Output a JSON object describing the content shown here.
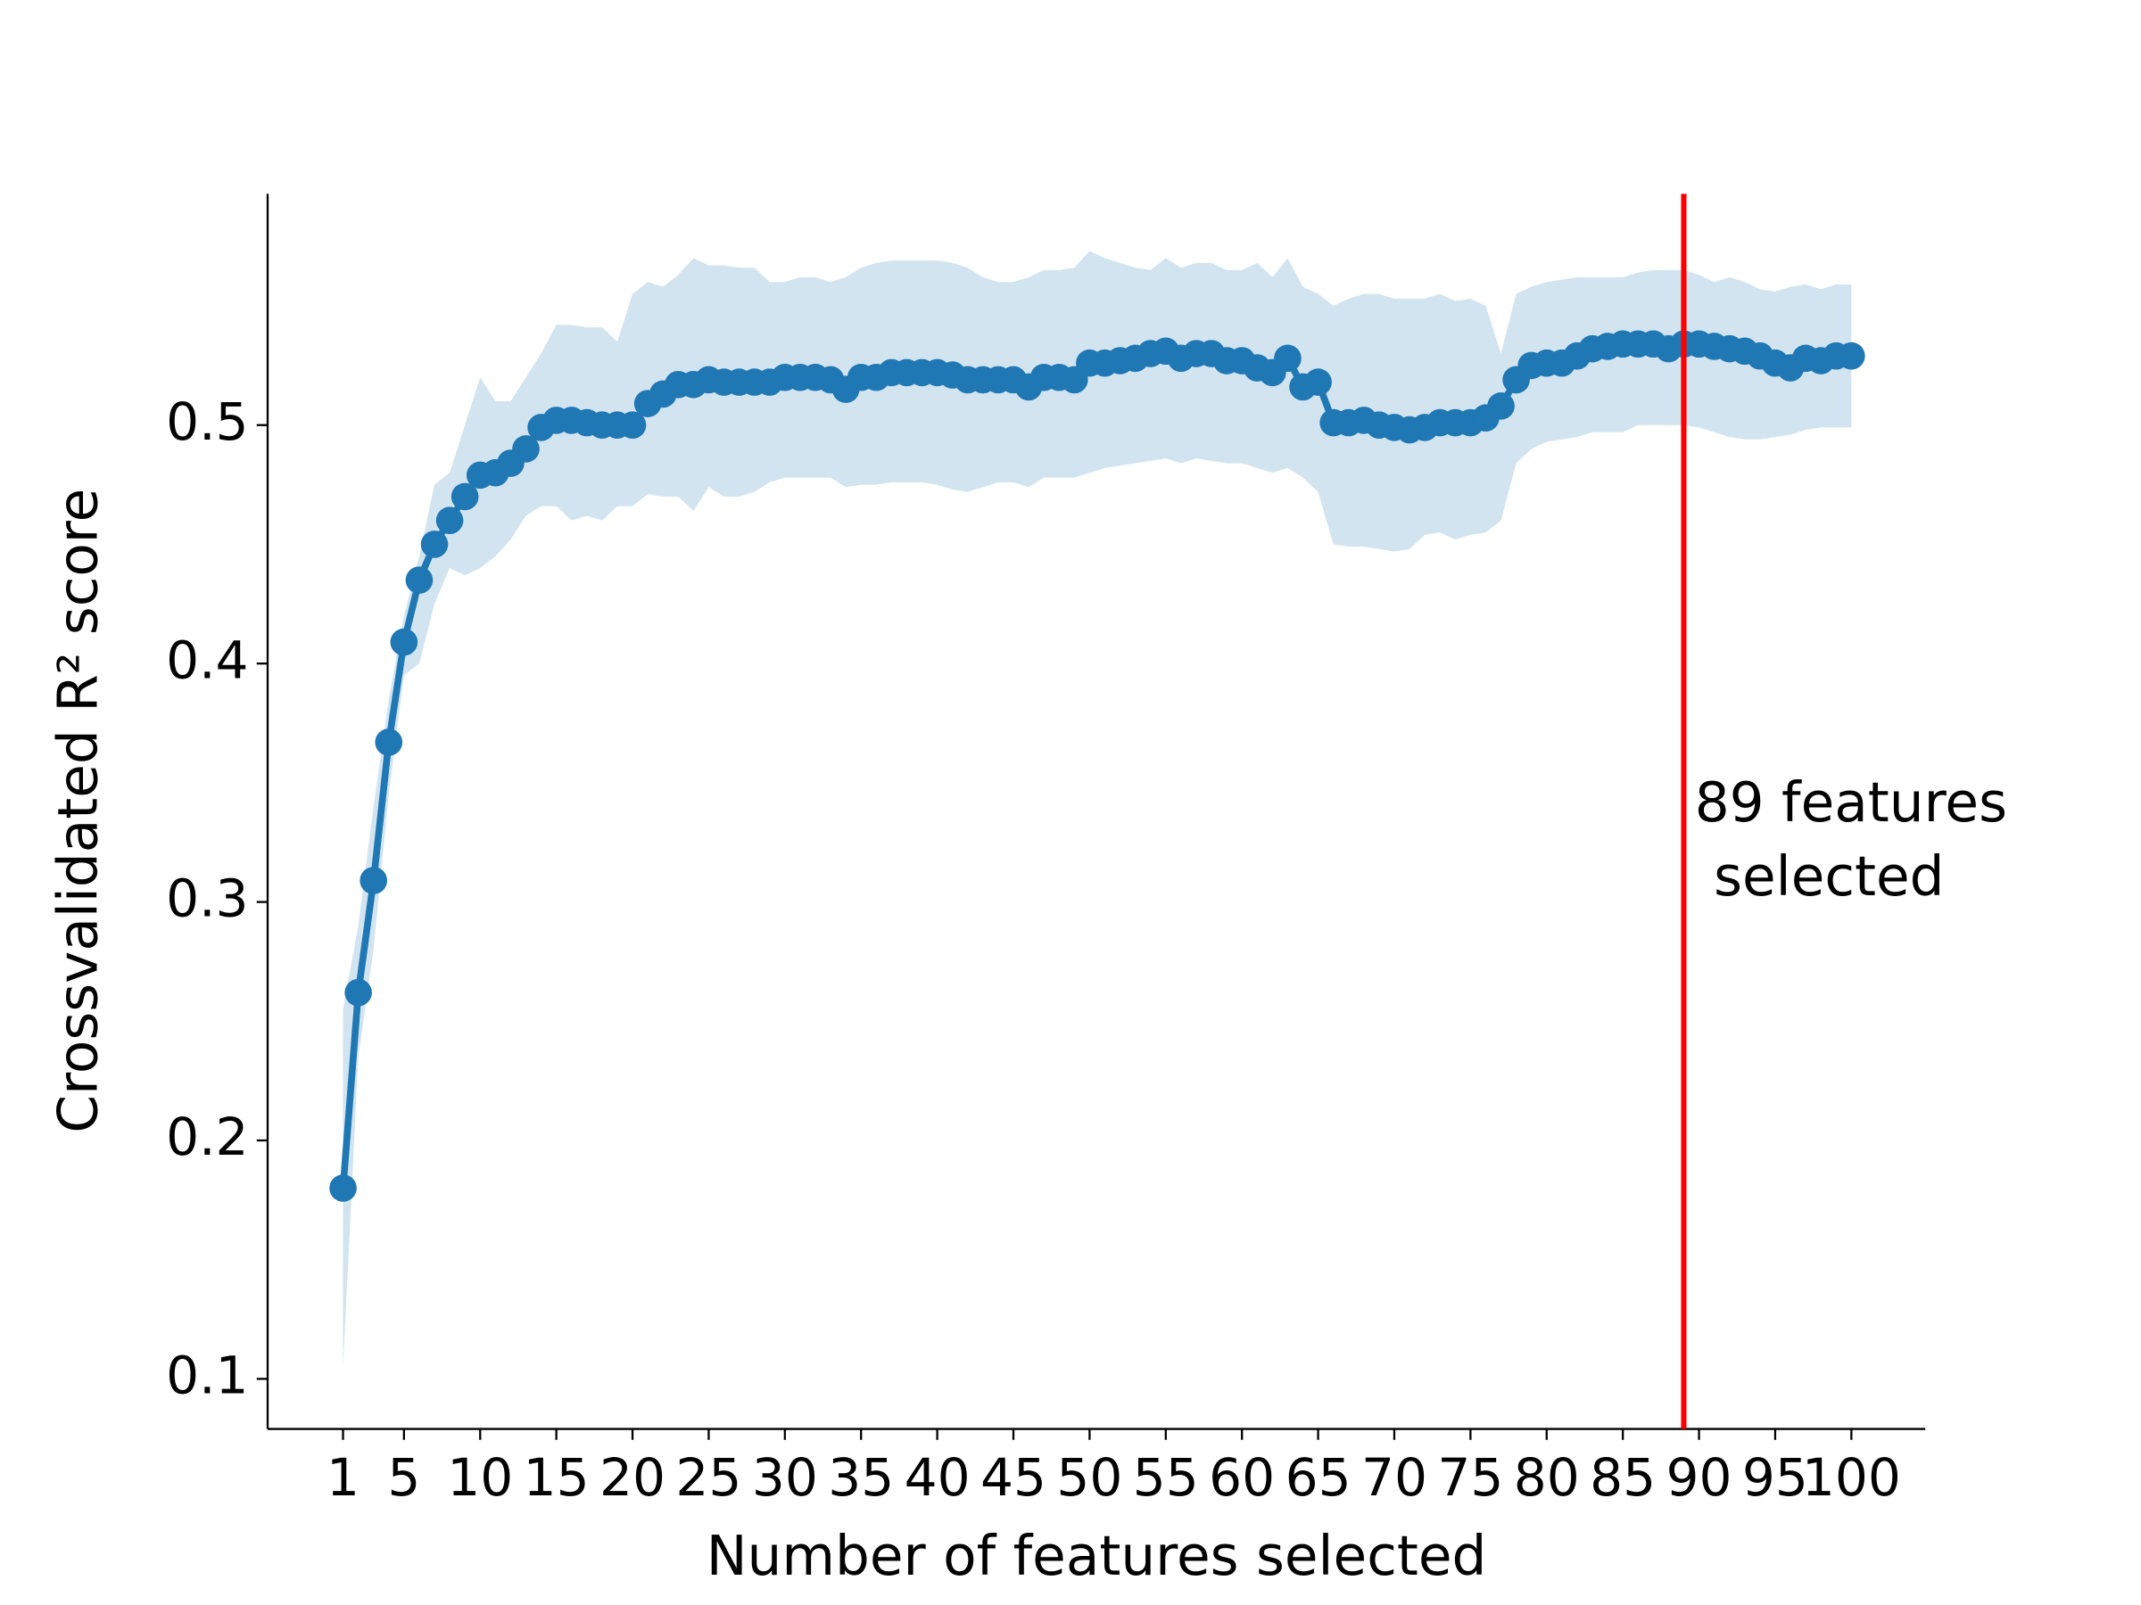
{
  "chart_data": {
    "type": "line",
    "xlabel": "Number of features selected",
    "ylabel": "Crossvalidated R² score",
    "xlim": [
      -3.95,
      104.85
    ],
    "ylim": [
      0.079,
      0.597
    ],
    "xticks": [
      1,
      5,
      10,
      15,
      20,
      25,
      30,
      35,
      40,
      45,
      50,
      55,
      60,
      65,
      70,
      75,
      80,
      85,
      90,
      95,
      100
    ],
    "yticks": [
      0.1,
      0.2,
      0.3,
      0.4,
      0.5
    ],
    "x": [
      1,
      2,
      3,
      4,
      5,
      6,
      7,
      8,
      9,
      10,
      11,
      12,
      13,
      14,
      15,
      16,
      17,
      18,
      19,
      20,
      21,
      22,
      23,
      24,
      25,
      26,
      27,
      28,
      29,
      30,
      31,
      32,
      33,
      34,
      35,
      36,
      37,
      38,
      39,
      40,
      41,
      42,
      43,
      44,
      45,
      46,
      47,
      48,
      49,
      50,
      51,
      52,
      53,
      54,
      55,
      56,
      57,
      58,
      59,
      60,
      61,
      62,
      63,
      64,
      65,
      66,
      67,
      68,
      69,
      70,
      71,
      72,
      73,
      74,
      75,
      76,
      77,
      78,
      79,
      80,
      81,
      82,
      83,
      84,
      85,
      86,
      87,
      88,
      89,
      90,
      91,
      92,
      93,
      94,
      95,
      96,
      97,
      98,
      99,
      100
    ],
    "series": [
      {
        "color": "#1f77b4",
        "values": [
          0.18,
          0.262,
          0.309,
          0.367,
          0.409,
          0.435,
          0.45,
          0.46,
          0.47,
          0.479,
          0.48,
          0.484,
          0.49,
          0.499,
          0.502,
          0.502,
          0.501,
          0.5,
          0.5,
          0.5,
          0.509,
          0.513,
          0.517,
          0.517,
          0.519,
          0.518,
          0.518,
          0.518,
          0.518,
          0.52,
          0.52,
          0.52,
          0.519,
          0.515,
          0.52,
          0.52,
          0.522,
          0.522,
          0.522,
          0.522,
          0.521,
          0.519,
          0.519,
          0.519,
          0.519,
          0.516,
          0.52,
          0.52,
          0.519,
          0.526,
          0.526,
          0.527,
          0.528,
          0.53,
          0.531,
          0.528,
          0.53,
          0.53,
          0.527,
          0.527,
          0.524,
          0.522,
          0.528,
          0.516,
          0.518,
          0.501,
          0.501,
          0.502,
          0.5,
          0.499,
          0.498,
          0.499,
          0.501,
          0.501,
          0.501,
          0.503,
          0.508,
          0.519,
          0.525,
          0.526,
          0.526,
          0.529,
          0.532,
          0.533,
          0.534,
          0.534,
          0.534,
          0.532,
          0.534,
          0.534,
          0.533,
          0.532,
          0.531,
          0.529,
          0.526,
          0.524,
          0.528,
          0.527,
          0.529,
          0.529
        ]
      }
    ],
    "band": {
      "color": "#1f77b4",
      "opacity": 0.2,
      "upper": [
        0.255,
        0.29,
        0.34,
        0.385,
        0.42,
        0.445,
        0.475,
        0.48,
        0.5,
        0.52,
        0.51,
        0.51,
        0.52,
        0.53,
        0.542,
        0.542,
        0.541,
        0.541,
        0.535,
        0.555,
        0.56,
        0.558,
        0.563,
        0.57,
        0.567,
        0.567,
        0.566,
        0.566,
        0.56,
        0.56,
        0.562,
        0.562,
        0.56,
        0.562,
        0.566,
        0.568,
        0.569,
        0.569,
        0.569,
        0.569,
        0.568,
        0.566,
        0.562,
        0.56,
        0.56,
        0.562,
        0.565,
        0.565,
        0.566,
        0.573,
        0.57,
        0.568,
        0.566,
        0.565,
        0.57,
        0.566,
        0.568,
        0.568,
        0.565,
        0.565,
        0.568,
        0.562,
        0.57,
        0.558,
        0.555,
        0.55,
        0.553,
        0.555,
        0.555,
        0.553,
        0.553,
        0.553,
        0.555,
        0.552,
        0.553,
        0.55,
        0.53,
        0.555,
        0.558,
        0.56,
        0.561,
        0.562,
        0.562,
        0.562,
        0.562,
        0.564,
        0.565,
        0.565,
        0.565,
        0.563,
        0.56,
        0.562,
        0.56,
        0.557,
        0.556,
        0.558,
        0.559,
        0.557,
        0.559,
        0.559
      ],
      "lower": [
        0.105,
        0.235,
        0.28,
        0.345,
        0.395,
        0.4,
        0.425,
        0.44,
        0.437,
        0.44,
        0.445,
        0.452,
        0.462,
        0.466,
        0.466,
        0.46,
        0.462,
        0.46,
        0.466,
        0.466,
        0.471,
        0.47,
        0.47,
        0.464,
        0.474,
        0.47,
        0.47,
        0.472,
        0.476,
        0.478,
        0.478,
        0.478,
        0.478,
        0.474,
        0.475,
        0.475,
        0.476,
        0.476,
        0.476,
        0.475,
        0.473,
        0.472,
        0.474,
        0.476,
        0.476,
        0.474,
        0.478,
        0.478,
        0.478,
        0.48,
        0.482,
        0.483,
        0.484,
        0.485,
        0.486,
        0.484,
        0.486,
        0.485,
        0.484,
        0.484,
        0.482,
        0.48,
        0.482,
        0.478,
        0.472,
        0.45,
        0.449,
        0.449,
        0.448,
        0.447,
        0.448,
        0.454,
        0.455,
        0.452,
        0.454,
        0.455,
        0.46,
        0.484,
        0.49,
        0.493,
        0.494,
        0.495,
        0.497,
        0.497,
        0.497,
        0.5,
        0.5,
        0.5,
        0.5,
        0.499,
        0.497,
        0.495,
        0.494,
        0.494,
        0.495,
        0.496,
        0.498,
        0.499,
        0.499,
        0.499
      ]
    },
    "vline": {
      "x": 89,
      "color": "#ff0000"
    },
    "annotation": [
      "89 features",
      "selected"
    ]
  }
}
